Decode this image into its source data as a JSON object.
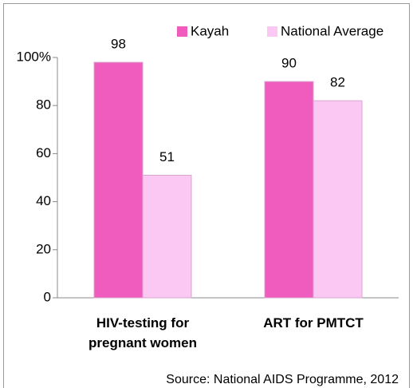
{
  "chart_data": {
    "type": "bar",
    "categories": [
      "HIV-testing for pregnant women",
      "ART for PMTCT"
    ],
    "series": [
      {
        "name": "Kayah",
        "color": "#ef5cbd",
        "values": [
          98,
          90
        ]
      },
      {
        "name": "National Average",
        "color": "#fac8f3",
        "values": [
          51,
          82
        ]
      }
    ],
    "ylim": [
      0,
      100
    ],
    "yticks": [
      0,
      20,
      40,
      60,
      80,
      {
        "value": 100,
        "label": "100%"
      }
    ],
    "annotation": "Source: National AIDS Programme, 2012",
    "grid": false
  }
}
